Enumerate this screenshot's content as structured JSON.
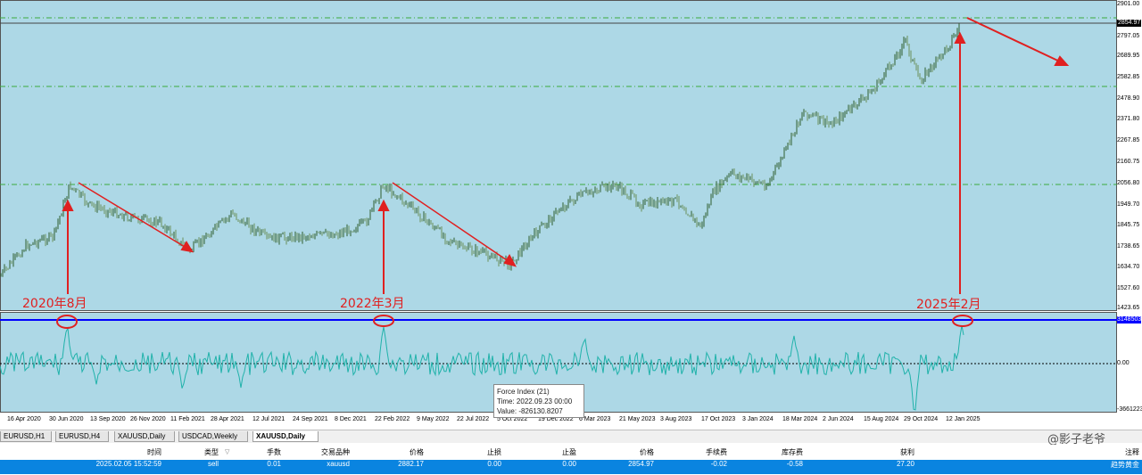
{
  "chart": {
    "price_axis_labels": [
      "2901.00",
      "2854.97",
      "2797.05",
      "2689.95",
      "2582.85",
      "2478.90",
      "2371.80",
      "2267.85",
      "2160.75",
      "2056.80",
      "1949.70",
      "1845.75",
      "1738.65",
      "1634.70",
      "1527.60",
      "1423.65"
    ],
    "current_price": "2854.97",
    "indicator_axis_labels": [
      "3148503",
      "0.00",
      "-3661223"
    ],
    "date_labels": [
      "16 Apr 2020",
      "30 Jun 2020",
      "13 Sep 2020",
      "26 Nov 2020",
      "11 Feb 2021",
      "28 Apr 2021",
      "12 Jul 2021",
      "24 Sep 2021",
      "8 Dec 2021",
      "22 Feb 2022",
      "9 May 2022",
      "22 Jul 2022",
      "5 Oct 2022",
      "19 Dec 2022",
      "6 Mar 2023",
      "21 May 2023",
      "3 Aug 2023",
      "17 Oct 2023",
      "3 Jan 2024",
      "18 Mar 2024",
      "2 Jun 2024",
      "15 Aug 2024",
      "29 Oct 2024",
      "12 Jan 2025"
    ],
    "annotations": [
      "2020年8月",
      "2022年3月",
      "2025年2月"
    ],
    "tooltip": {
      "line1": "Force Index (21)",
      "line2": "Time: 2022.09.23 00:00",
      "line3": "Value: -826130.8207"
    },
    "colors": {
      "background": "#add8e6",
      "candles": "#3a6e3a",
      "indicator": "#20b2aa",
      "annotation": "#e02020",
      "level_line": "#0000ff"
    }
  },
  "tabs": [
    "EURUSD,H1",
    "EURUSD,H4",
    "XAUUSD,Daily",
    "USDCAD,Weekly",
    "XAUUSD,Daily"
  ],
  "active_tab": 4,
  "table": {
    "headers": [
      "时间",
      "类型",
      "手数",
      "交易品种",
      "价格",
      "止损",
      "止盈",
      "价格",
      "手续费",
      "库存费",
      "获利",
      "注释"
    ],
    "row": [
      "2025.02.05 15:52:59",
      "sell",
      "0.01",
      "xauusd",
      "2882.17",
      "0.00",
      "0.00",
      "2854.97",
      "-0.02",
      "-0.58",
      "27.20",
      "趋势黄金"
    ]
  },
  "watermark": "@影子老爷"
}
